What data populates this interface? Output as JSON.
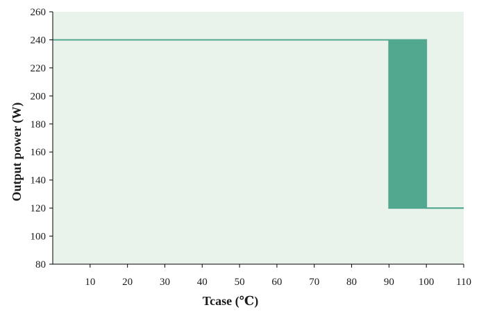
{
  "chart_data": {
    "type": "line",
    "title": "",
    "xlabel": "Tcase (℃)",
    "ylabel": "Output power (W)",
    "xlim": [
      0,
      110
    ],
    "ylim": [
      80,
      260
    ],
    "x_ticks": [
      10,
      20,
      30,
      40,
      50,
      60,
      70,
      80,
      90,
      100,
      110
    ],
    "y_ticks": [
      80,
      100,
      120,
      140,
      160,
      180,
      200,
      220,
      240,
      260
    ],
    "grid": false,
    "legend": "none",
    "colors": {
      "plot_background": "#eaf2ec",
      "series": "#52a88e",
      "axis": "#000000"
    },
    "series": [
      {
        "x": [
          0,
          90,
          90,
          100,
          100,
          110
        ],
        "y": [
          240,
          240,
          120,
          120,
          120,
          120
        ],
        "upper": [
          240,
          240,
          240,
          240,
          120,
          120
        ]
      }
    ]
  }
}
